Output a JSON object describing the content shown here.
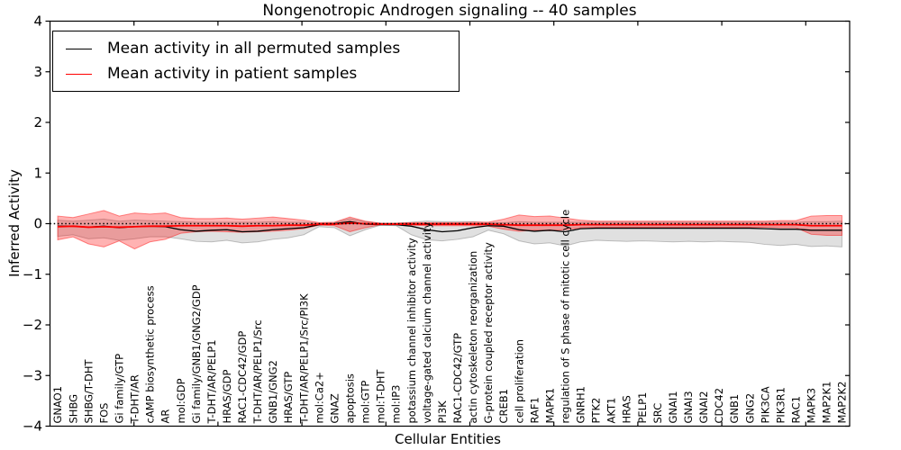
{
  "figure": {
    "title": "Nongenotropic Androgen signaling -- 40 samples",
    "xlabel": "Cellular Entities",
    "ylabel": "Inferred Activity",
    "background_color": "#ffffff"
  },
  "legend": {
    "entries": [
      {
        "label": "Mean activity in all permuted samples",
        "color": "#000000"
      },
      {
        "label": "Mean activity in patient samples",
        "color": "#ff0000"
      }
    ]
  },
  "chart_data": {
    "type": "line",
    "title": "Nongenotropic Androgen signaling -- 40 samples",
    "xlabel": "Cellular Entities",
    "ylabel": "Inferred Activity",
    "ylim": [
      -4,
      4
    ],
    "yticks": [
      4,
      3,
      2,
      1,
      0,
      -1,
      -2,
      -3,
      -4
    ],
    "grid": false,
    "legend_position": "upper left",
    "zero_reference_line": true,
    "categories": [
      "GNAO1",
      "SHBG",
      "SHBG/T-DHT",
      "FOS",
      "Gi family/GTP",
      "T-DHT/AR",
      "cAMP biosynthetic process",
      "AR",
      "mol:GDP",
      "Gi family/GNB1/GNG2/GDP",
      "T-DHT/AR/PELP1",
      "HRAS/GDP",
      "RAC1-CDC42/GDP",
      "T-DHT/AR/PELP1/Src",
      "GNB1/GNG2",
      "HRAS/GTP",
      "T-DHT/AR/PELP1/Src/PI3K",
      "mol:Ca2+",
      "GNAZ",
      "apoptosis",
      "mol:GTP",
      "mol:T-DHT",
      "mol:IP3",
      "potassium channel inhibitor activity",
      "voltage-gated calcium channel activity",
      "PI3K",
      "RAC1-CDC42/GTP",
      "actin cytoskeleton reorganization",
      "G-protein coupled receptor activity",
      "CREB1",
      "cell proliferation",
      "RAF1",
      "MAPK1",
      "regulation of S phase of mitotic cell cycle",
      "GNRH1",
      "PTK2",
      "AKT1",
      "HRAS",
      "PELP1",
      "SRC",
      "GNAI1",
      "GNAI3",
      "GNAI2",
      "CDC42",
      "GNB1",
      "GNG2",
      "PIK3CA",
      "PIK3R1",
      "RAC1",
      "MAPK3",
      "MAP2K1",
      "MAP2K2"
    ],
    "series": [
      {
        "name": "Mean activity in all permuted samples",
        "color": "#000000",
        "line_width": 1.3,
        "values": [
          -0.05,
          -0.05,
          -0.07,
          -0.05,
          -0.08,
          -0.06,
          -0.05,
          -0.06,
          -0.12,
          -0.15,
          -0.13,
          -0.12,
          -0.16,
          -0.15,
          -0.12,
          -0.1,
          -0.08,
          -0.02,
          0.0,
          0.04,
          -0.01,
          -0.02,
          -0.02,
          -0.05,
          -0.12,
          -0.16,
          -0.14,
          -0.08,
          -0.04,
          -0.05,
          -0.12,
          -0.15,
          -0.13,
          -0.16,
          -0.1,
          -0.09,
          -0.09,
          -0.09,
          -0.09,
          -0.09,
          -0.09,
          -0.09,
          -0.09,
          -0.09,
          -0.09,
          -0.09,
          -0.1,
          -0.11,
          -0.11,
          -0.13,
          -0.13,
          -0.13
        ]
      },
      {
        "name": "Mean activity in patient samples",
        "color": "#ff0000",
        "line_width": 1.8,
        "values": [
          -0.06,
          -0.05,
          -0.07,
          -0.06,
          -0.07,
          -0.06,
          -0.05,
          -0.05,
          -0.04,
          -0.04,
          -0.04,
          -0.04,
          -0.05,
          -0.04,
          -0.04,
          -0.03,
          -0.03,
          -0.01,
          -0.01,
          0.01,
          0.0,
          -0.01,
          -0.01,
          -0.01,
          -0.01,
          -0.01,
          -0.01,
          -0.01,
          -0.01,
          -0.02,
          -0.03,
          -0.03,
          -0.03,
          -0.03,
          -0.02,
          -0.02,
          -0.02,
          -0.02,
          -0.02,
          -0.02,
          -0.02,
          -0.02,
          -0.02,
          -0.02,
          -0.02,
          -0.02,
          -0.02,
          -0.02,
          -0.02,
          -0.04,
          -0.04,
          -0.04
        ]
      }
    ],
    "bands": [
      {
        "name": "permuted-samples-std-band",
        "fill": "rgba(0,0,0,0.12)",
        "edge": "rgba(0,0,0,0.22)",
        "upper": [
          0.07,
          0.05,
          0.07,
          0.09,
          0.05,
          0.07,
          0.06,
          0.05,
          0.04,
          0.03,
          0.03,
          0.03,
          0.03,
          0.03,
          0.04,
          0.03,
          0.03,
          0.01,
          0.02,
          0.1,
          0.04,
          0.01,
          0.01,
          0.03,
          0.05,
          0.04,
          0.04,
          0.04,
          0.02,
          0.02,
          0.04,
          0.03,
          0.03,
          0.03,
          0.03,
          0.03,
          0.03,
          0.03,
          0.03,
          0.03,
          0.03,
          0.03,
          0.03,
          0.03,
          0.03,
          0.03,
          0.03,
          0.03,
          0.03,
          0.04,
          0.04,
          0.05
        ],
        "lower": [
          -0.25,
          -0.22,
          -0.3,
          -0.28,
          -0.33,
          -0.3,
          -0.26,
          -0.26,
          -0.3,
          -0.35,
          -0.36,
          -0.33,
          -0.38,
          -0.36,
          -0.31,
          -0.28,
          -0.22,
          -0.06,
          -0.08,
          -0.24,
          -0.12,
          -0.03,
          -0.04,
          -0.22,
          -0.32,
          -0.34,
          -0.31,
          -0.26,
          -0.13,
          -0.2,
          -0.34,
          -0.4,
          -0.38,
          -0.44,
          -0.36,
          -0.33,
          -0.34,
          -0.35,
          -0.34,
          -0.35,
          -0.36,
          -0.35,
          -0.36,
          -0.35,
          -0.36,
          -0.37,
          -0.41,
          -0.43,
          -0.41,
          -0.45,
          -0.44,
          -0.46
        ]
      },
      {
        "name": "patient-samples-std-band",
        "fill": "rgba(255,0,0,0.30)",
        "edge": "rgba(255,0,0,0.45)",
        "upper": [
          0.15,
          0.12,
          0.19,
          0.26,
          0.15,
          0.21,
          0.19,
          0.21,
          0.12,
          0.1,
          0.1,
          0.11,
          0.09,
          0.11,
          0.13,
          0.1,
          0.07,
          0.02,
          0.03,
          0.13,
          0.05,
          0.01,
          0.01,
          0.02,
          0.02,
          0.02,
          0.02,
          0.03,
          0.03,
          0.09,
          0.17,
          0.14,
          0.15,
          0.11,
          0.07,
          0.05,
          0.05,
          0.05,
          0.05,
          0.05,
          0.05,
          0.05,
          0.05,
          0.05,
          0.05,
          0.05,
          0.05,
          0.06,
          0.06,
          0.15,
          0.16,
          0.16
        ],
        "lower": [
          -0.32,
          -0.26,
          -0.4,
          -0.46,
          -0.34,
          -0.5,
          -0.36,
          -0.31,
          -0.19,
          -0.16,
          -0.15,
          -0.16,
          -0.17,
          -0.16,
          -0.15,
          -0.13,
          -0.1,
          -0.03,
          -0.04,
          -0.16,
          -0.08,
          -0.02,
          -0.02,
          -0.03,
          -0.04,
          -0.04,
          -0.04,
          -0.04,
          -0.05,
          -0.11,
          -0.15,
          -0.13,
          -0.14,
          -0.12,
          -0.08,
          -0.07,
          -0.07,
          -0.07,
          -0.07,
          -0.07,
          -0.07,
          -0.07,
          -0.07,
          -0.07,
          -0.07,
          -0.07,
          -0.07,
          -0.08,
          -0.08,
          -0.21,
          -0.23,
          -0.23
        ]
      }
    ]
  }
}
